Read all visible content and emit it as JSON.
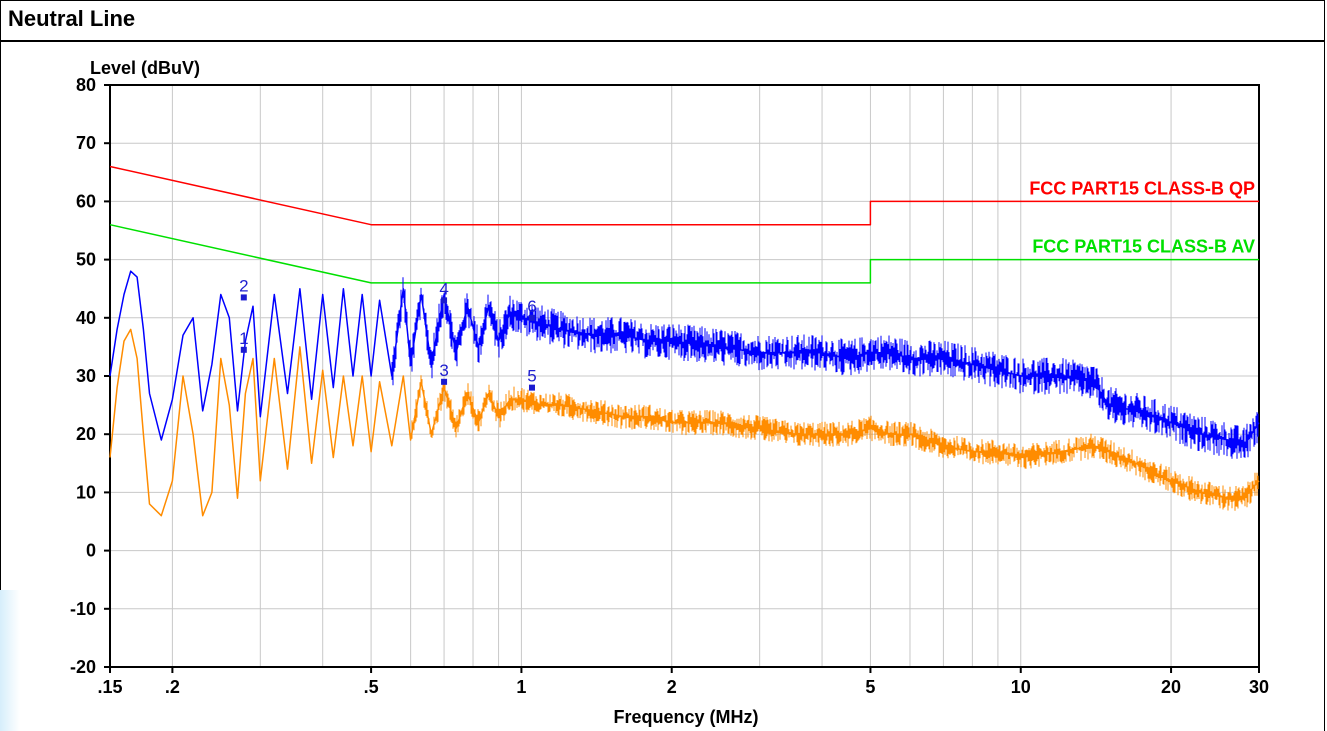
{
  "page": {
    "title": "Neutral Line"
  },
  "colors": {
    "peak_trace": "#0000ff",
    "average_trace": "#ff8c00",
    "qp_limit": "#ff0000",
    "av_limit": "#00e000",
    "grid": "#c8c8c8",
    "marker": "#1a1ad0"
  },
  "chart_data": {
    "type": "line",
    "title": "",
    "xlabel": "Frequency (MHz)",
    "ylabel": "Level (dBuV)",
    "xscale": "log",
    "xlim": [
      0.15,
      30
    ],
    "ylim": [
      -20,
      80
    ],
    "xticks": [
      {
        "value": 0.15,
        "label": ".15"
      },
      {
        "value": 0.2,
        "label": ".2"
      },
      {
        "value": 0.5,
        "label": ".5"
      },
      {
        "value": 1,
        "label": "1"
      },
      {
        "value": 2,
        "label": "2"
      },
      {
        "value": 5,
        "label": "5"
      },
      {
        "value": 10,
        "label": "10"
      },
      {
        "value": 20,
        "label": "20"
      },
      {
        "value": 30,
        "label": "30"
      }
    ],
    "yticks": [
      -20,
      -10,
      0,
      10,
      20,
      30,
      40,
      50,
      60,
      70,
      80
    ],
    "grid": true,
    "series": [
      {
        "name": "FCC PART15 CLASS-B QP",
        "role": "limit",
        "x": [
          0.15,
          0.5,
          5,
          5,
          30
        ],
        "y": [
          66,
          56,
          56,
          60,
          60
        ]
      },
      {
        "name": "FCC PART15 CLASS-B AV",
        "role": "limit",
        "x": [
          0.15,
          0.5,
          5,
          5,
          30
        ],
        "y": [
          56,
          46,
          46,
          50,
          50
        ]
      },
      {
        "name": "",
        "role": "peak",
        "x": [
          0.15,
          0.155,
          0.16,
          0.165,
          0.17,
          0.175,
          0.18,
          0.19,
          0.2,
          0.21,
          0.22,
          0.23,
          0.24,
          0.25,
          0.26,
          0.27,
          0.28,
          0.29,
          0.3,
          0.32,
          0.34,
          0.36,
          0.38,
          0.4,
          0.42,
          0.44,
          0.46,
          0.48,
          0.5,
          0.52,
          0.55,
          0.58,
          0.6,
          0.63,
          0.66,
          0.7,
          0.74,
          0.78,
          0.82,
          0.86,
          0.9,
          0.95,
          1.0,
          1.1,
          1.2,
          1.4,
          1.6,
          1.8,
          2.0,
          2.5,
          3.0,
          3.5,
          4.0,
          4.5,
          5.0,
          5.5,
          6.0,
          7.0,
          8.0,
          9.0,
          10.0,
          12.0,
          14.0,
          15.0,
          17.0,
          20.0,
          23.0,
          26.0,
          28.0,
          30.0
        ],
        "y": [
          30,
          38,
          44,
          48,
          47,
          38,
          27,
          19,
          26,
          37,
          40,
          24,
          32,
          44,
          40,
          24,
          36,
          42,
          23,
          44,
          27,
          45,
          26,
          44,
          28,
          45,
          30,
          44,
          30,
          43,
          30,
          45,
          32,
          44,
          32,
          44,
          34,
          42,
          35,
          42,
          36,
          41,
          40,
          39,
          38,
          37,
          37,
          36,
          36,
          35,
          34,
          34,
          34,
          33,
          34,
          34,
          33,
          33,
          32,
          31,
          30,
          30,
          29,
          25,
          24,
          22,
          20,
          19,
          18,
          22
        ]
      },
      {
        "name": "",
        "role": "average",
        "x": [
          0.15,
          0.155,
          0.16,
          0.165,
          0.17,
          0.175,
          0.18,
          0.19,
          0.2,
          0.21,
          0.22,
          0.23,
          0.24,
          0.25,
          0.26,
          0.27,
          0.28,
          0.29,
          0.3,
          0.32,
          0.34,
          0.36,
          0.38,
          0.4,
          0.42,
          0.44,
          0.46,
          0.48,
          0.5,
          0.52,
          0.55,
          0.58,
          0.6,
          0.63,
          0.66,
          0.7,
          0.74,
          0.78,
          0.82,
          0.86,
          0.9,
          0.95,
          1.0,
          1.1,
          1.2,
          1.4,
          1.6,
          1.8,
          2.0,
          2.5,
          3.0,
          3.5,
          4.0,
          4.5,
          5.0,
          5.5,
          6.0,
          7.0,
          8.0,
          9.0,
          10.0,
          12.0,
          14.0,
          15.0,
          17.0,
          20.0,
          23.0,
          26.0,
          28.0,
          30.0
        ],
        "y": [
          16,
          28,
          36,
          38,
          33,
          20,
          8,
          6,
          12,
          30,
          20,
          6,
          10,
          33,
          25,
          9,
          27,
          33,
          12,
          33,
          14,
          35,
          15,
          31,
          16,
          30,
          18,
          30,
          17,
          29,
          18,
          30,
          19,
          29,
          20,
          28,
          21,
          27,
          22,
          27,
          23,
          26,
          26,
          25,
          25,
          24,
          23,
          23,
          22,
          22,
          21,
          20,
          20,
          20,
          21,
          20,
          20,
          18,
          17,
          17,
          16,
          17,
          18,
          17,
          15,
          12,
          10,
          9,
          9,
          12
        ]
      }
    ],
    "annotations": [
      {
        "label": "1",
        "x": 0.278,
        "y": 34.5
      },
      {
        "label": "2",
        "x": 0.278,
        "y": 43.5
      },
      {
        "label": "3",
        "x": 0.7,
        "y": 29
      },
      {
        "label": "4",
        "x": 0.7,
        "y": 43
      },
      {
        "label": "5",
        "x": 1.05,
        "y": 28
      },
      {
        "label": "6",
        "x": 1.05,
        "y": 40
      }
    ]
  }
}
